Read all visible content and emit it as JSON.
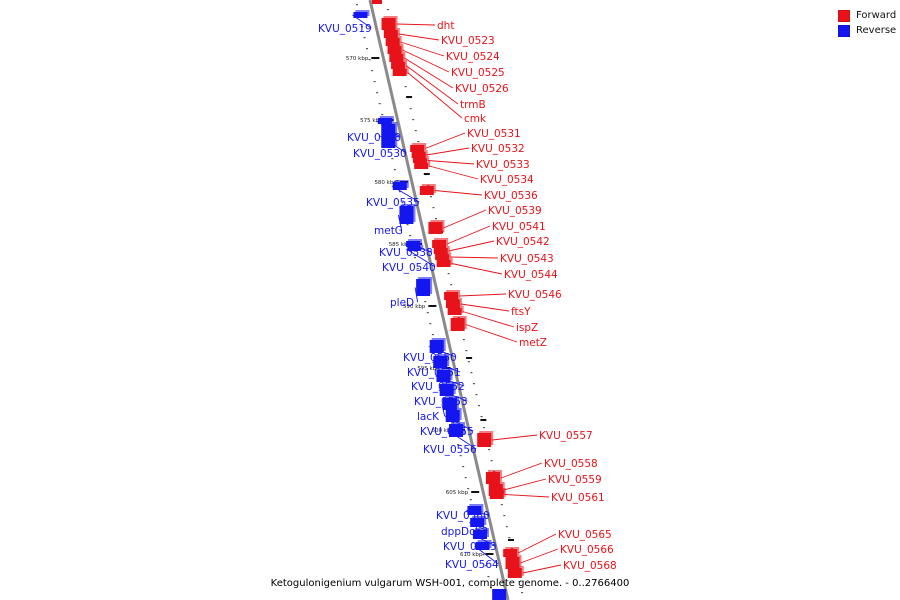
{
  "legend": {
    "forward": "Forward",
    "reverse": "Reverse"
  },
  "colors": {
    "forward": "#e8131a",
    "reverse": "#1416f0",
    "axis": "#8a8a8a",
    "tick": "#111111"
  },
  "caption": "Ketogulonigenium vulgarum WSH-001, complete genome. - 0..2766400",
  "ticks": [
    {
      "label": "570 kbp",
      "side": "left",
      "pos": 0
    },
    {
      "label": "575 kbp",
      "side": "left",
      "pos": 1
    },
    {
      "label": "580 kbp",
      "side": "left",
      "pos": 2
    },
    {
      "label": "585 kbp",
      "side": "left",
      "pos": 3
    },
    {
      "label": "590 kbp",
      "side": "left",
      "pos": 4
    },
    {
      "label": "595 kbp",
      "side": "left",
      "pos": 5
    },
    {
      "label": "600 kbp",
      "side": "left",
      "pos": 6
    },
    {
      "label": "605 kbp",
      "side": "left",
      "pos": 7
    },
    {
      "label": "610 kbp",
      "side": "left",
      "pos": 8
    }
  ],
  "genes": [
    {
      "name": "KVU_0519",
      "strand": "reverse"
    },
    {
      "name": "dht",
      "strand": "forward"
    },
    {
      "name": "KVU_0523",
      "strand": "forward"
    },
    {
      "name": "KVU_0524",
      "strand": "forward"
    },
    {
      "name": "KVU_0525",
      "strand": "forward"
    },
    {
      "name": "KVU_0526",
      "strand": "forward"
    },
    {
      "name": "trmB",
      "strand": "forward"
    },
    {
      "name": "cmk",
      "strand": "forward"
    },
    {
      "name": "KVU_0528",
      "strand": "reverse"
    },
    {
      "name": "KVU_0530",
      "strand": "reverse"
    },
    {
      "name": "KVU_0531",
      "strand": "forward"
    },
    {
      "name": "KVU_0532",
      "strand": "forward"
    },
    {
      "name": "KVU_0533",
      "strand": "forward"
    },
    {
      "name": "KVU_0534",
      "strand": "forward"
    },
    {
      "name": "KVU_0535",
      "strand": "reverse"
    },
    {
      "name": "KVU_0536",
      "strand": "forward"
    },
    {
      "name": "KVU_0539",
      "strand": "forward"
    },
    {
      "name": "metG",
      "strand": "reverse"
    },
    {
      "name": "KVU_0541",
      "strand": "forward"
    },
    {
      "name": "KVU_0542",
      "strand": "forward"
    },
    {
      "name": "KVU_0538",
      "strand": "reverse"
    },
    {
      "name": "KVU_0543",
      "strand": "forward"
    },
    {
      "name": "KVU_0540",
      "strand": "reverse"
    },
    {
      "name": "KVU_0544",
      "strand": "forward"
    },
    {
      "name": "KVU_0546",
      "strand": "forward"
    },
    {
      "name": "pleD",
      "strand": "reverse"
    },
    {
      "name": "ftsY",
      "strand": "forward"
    },
    {
      "name": "ispZ",
      "strand": "forward"
    },
    {
      "name": "metZ",
      "strand": "forward"
    },
    {
      "name": "KVU_0550",
      "strand": "reverse"
    },
    {
      "name": "KVU_0551",
      "strand": "reverse"
    },
    {
      "name": "KVU_0552",
      "strand": "reverse"
    },
    {
      "name": "KVU_0553",
      "strand": "reverse"
    },
    {
      "name": "lacK",
      "strand": "reverse"
    },
    {
      "name": "KVU_0555",
      "strand": "reverse"
    },
    {
      "name": "KVU_0557",
      "strand": "forward"
    },
    {
      "name": "KVU_0556",
      "strand": "reverse"
    },
    {
      "name": "KVU_0558",
      "strand": "forward"
    },
    {
      "name": "KVU_0559",
      "strand": "forward"
    },
    {
      "name": "KVU_0561",
      "strand": "forward"
    },
    {
      "name": "KVU_0560",
      "strand": "reverse"
    },
    {
      "name": "dppDch3",
      "strand": "reverse"
    },
    {
      "name": "KVU_0565",
      "strand": "forward"
    },
    {
      "name": "KVU_0563",
      "strand": "reverse"
    },
    {
      "name": "KVU_0566",
      "strand": "forward"
    },
    {
      "name": "KVU_0564",
      "strand": "reverse"
    },
    {
      "name": "KVU_0568",
      "strand": "forward"
    }
  ]
}
